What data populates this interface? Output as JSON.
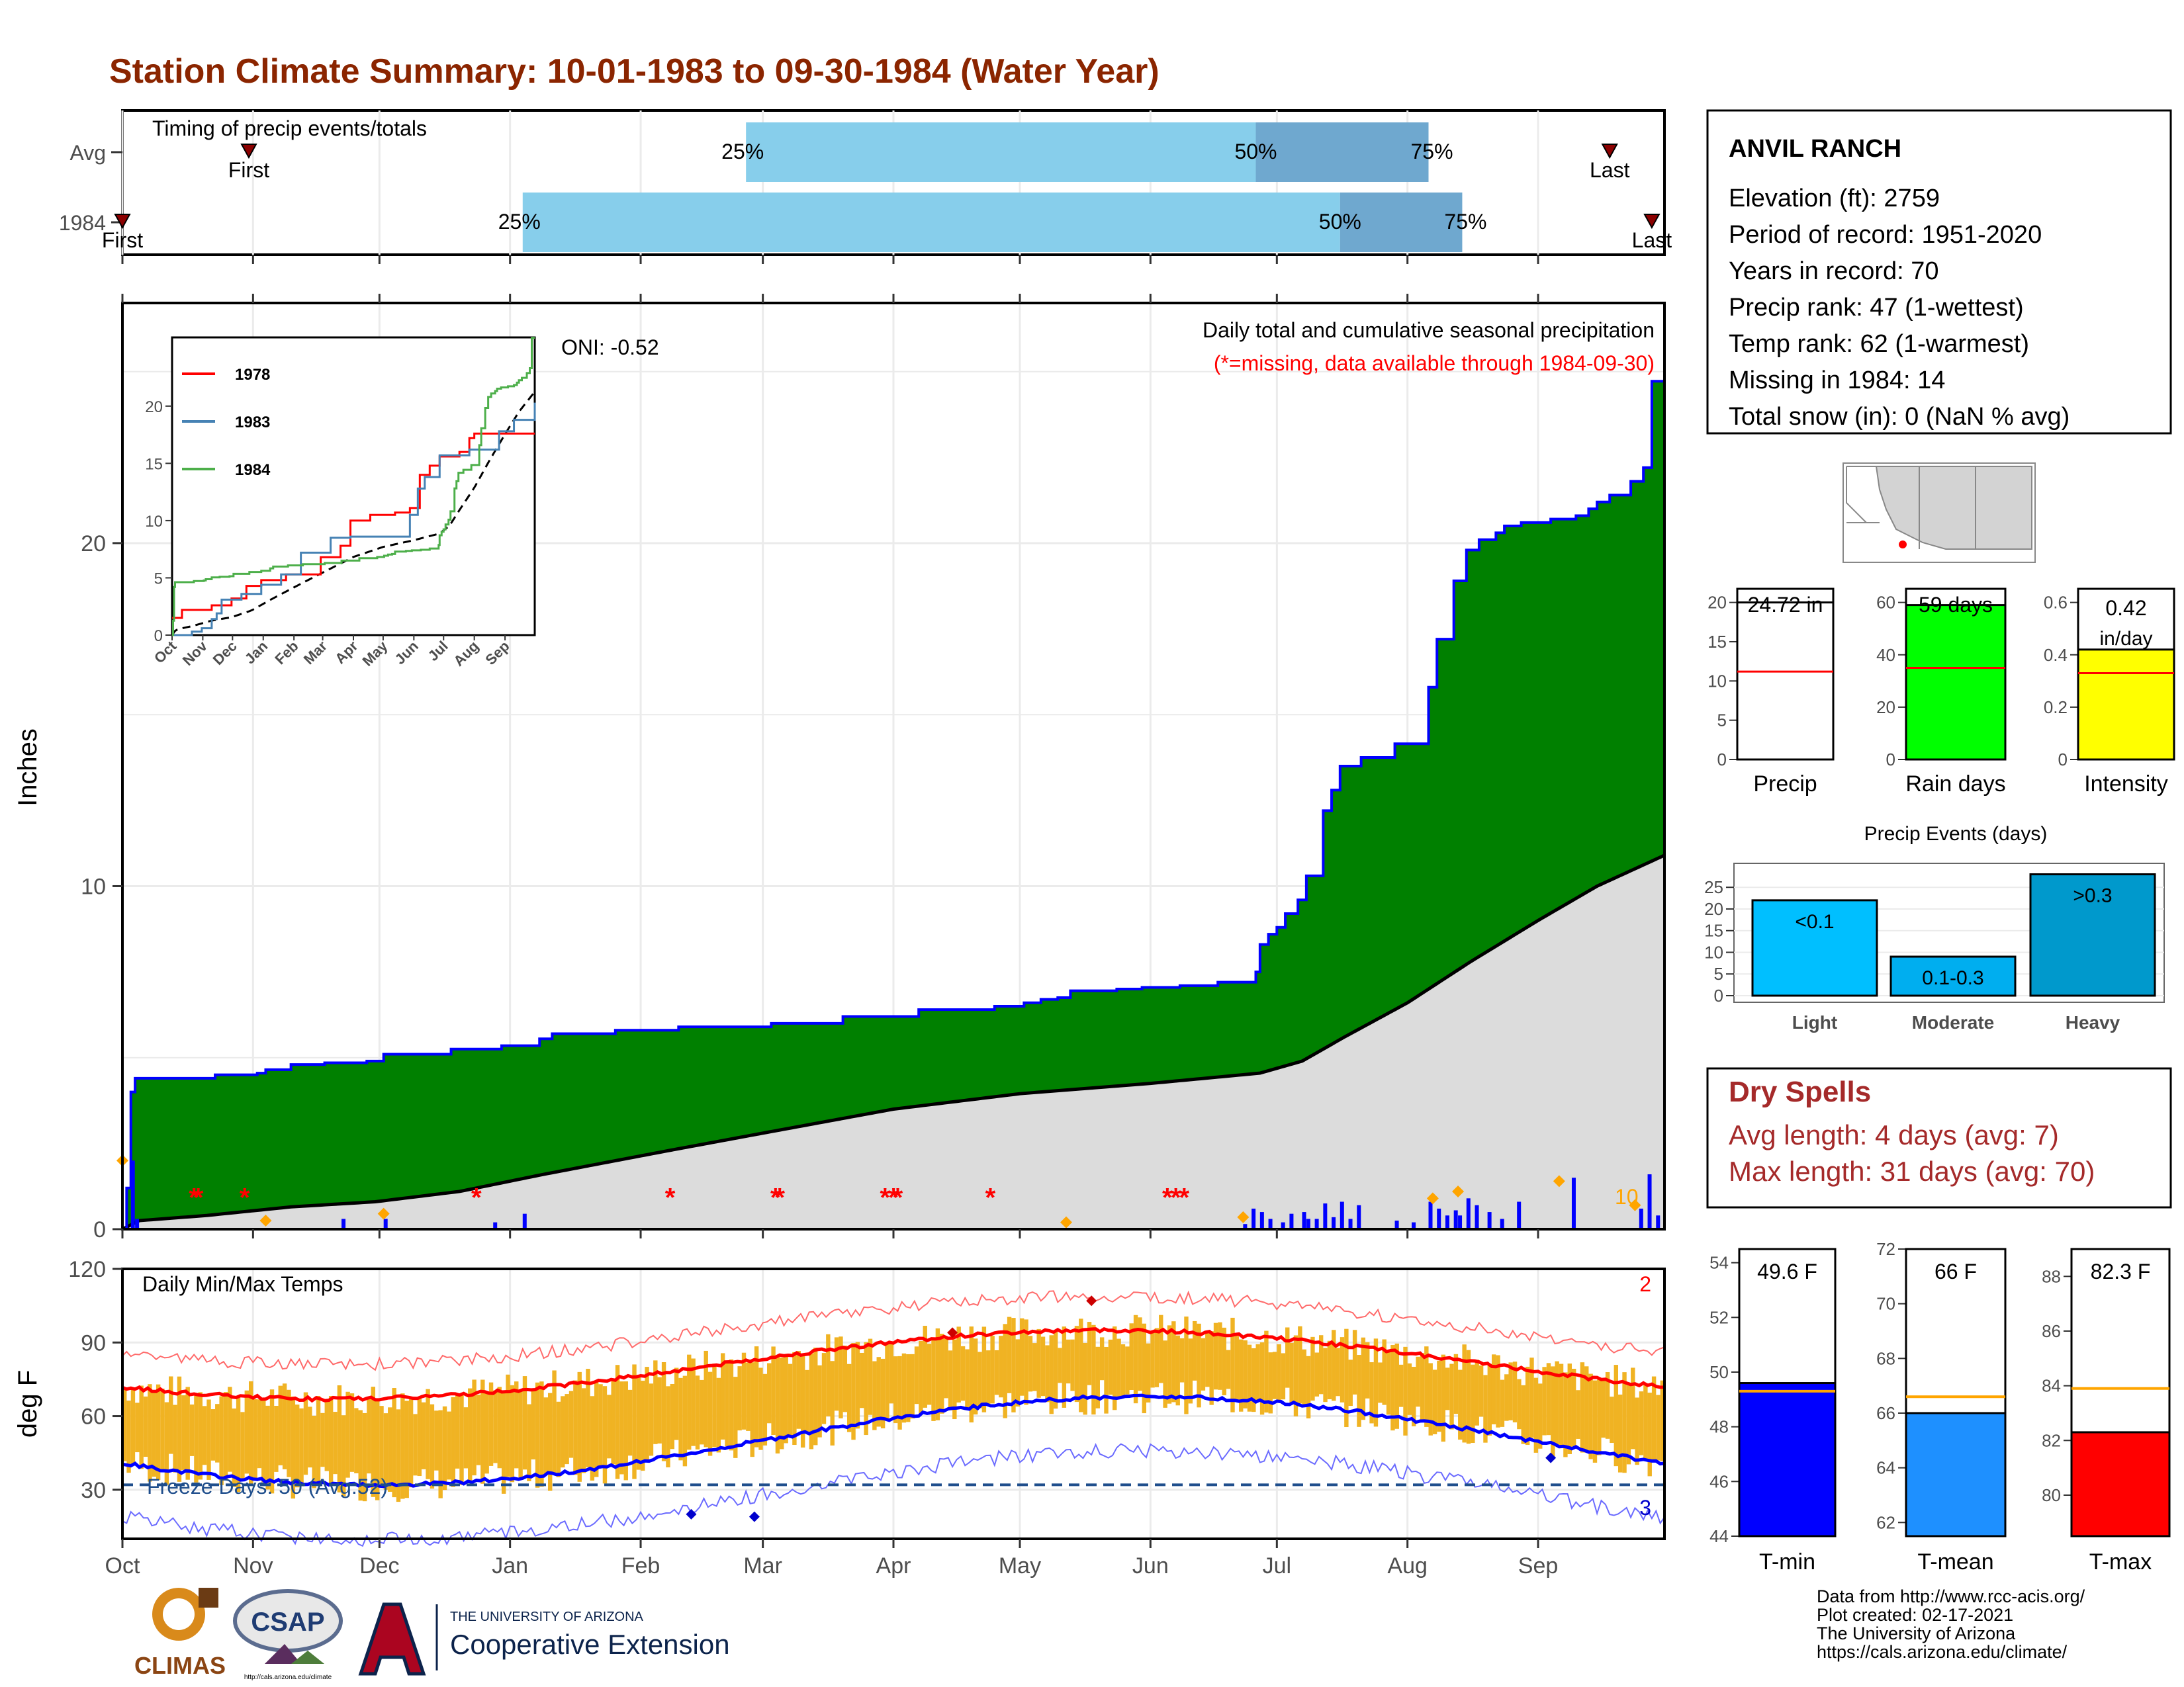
{
  "title": "Station Climate Summary: 10-01-1983 to 09-30-1984 (Water Year)",
  "colors": {
    "title": "#8b2500",
    "bar_light": "#87ceeb",
    "bar_dark": "#6fa8cf",
    "green": "#008000",
    "blue_line": "#0000ff",
    "gray_fill": "#dcdcdc",
    "gold": "#f0b323",
    "red": "#ff0000",
    "dry": "#a52a2a",
    "cyan": "#00bfff",
    "cyan2": "#00aeef",
    "cyan3": "#0099cc",
    "yellow": "#ffff00",
    "lime": "#00ff00",
    "orange": "#ffa500",
    "tmin": "#0000ff",
    "tmean": "#1e90ff"
  },
  "timing": {
    "label": "Timing of precip events/totals",
    "rows": [
      {
        "name": "Avg",
        "first_label": "First",
        "last_label": "Last",
        "first_day": 30,
        "last_day": 353,
        "p25": 148,
        "p50": 269,
        "p75": 310,
        "p25_label": "25%",
        "p50_label": "50%",
        "p75_label": "75%"
      },
      {
        "name": "1984",
        "first_label": "First",
        "last_label": "Last",
        "first_day": 0,
        "last_day": 363,
        "p25": 95,
        "p50": 289,
        "p75": 318,
        "p25_label": "25%",
        "p50_label": "50%",
        "p75_label": "75%"
      }
    ]
  },
  "precip": {
    "ylabel": "Inches",
    "yticks": [
      0,
      10,
      20
    ],
    "ylim": [
      0,
      27
    ],
    "oni": "ONI: -0.52",
    "subtitle": "Daily total and cumulative seasonal precipitation",
    "missing_note": "(*=missing, data available through 1984-09-30)",
    "corner_count": "10",
    "cumulative_1984_breakpoints": [
      [
        0,
        0
      ],
      [
        1,
        1.2
      ],
      [
        2,
        4.0
      ],
      [
        3,
        4.4
      ],
      [
        14,
        4.4
      ],
      [
        22,
        4.5
      ],
      [
        32,
        4.55
      ],
      [
        34,
        4.65
      ],
      [
        40,
        4.8
      ],
      [
        48,
        4.85
      ],
      [
        58,
        4.9
      ],
      [
        62,
        5.1
      ],
      [
        78,
        5.25
      ],
      [
        90,
        5.35
      ],
      [
        99,
        5.55
      ],
      [
        102,
        5.7
      ],
      [
        117,
        5.8
      ],
      [
        132,
        5.9
      ],
      [
        154,
        6.0
      ],
      [
        171,
        6.2
      ],
      [
        189,
        6.4
      ],
      [
        207,
        6.5
      ],
      [
        214,
        6.6
      ],
      [
        218,
        6.7
      ],
      [
        222,
        6.75
      ],
      [
        225,
        6.95
      ],
      [
        236,
        7.0
      ],
      [
        242,
        7.05
      ],
      [
        251,
        7.1
      ],
      [
        260,
        7.2
      ],
      [
        268,
        7.2
      ],
      [
        269,
        7.5
      ],
      [
        270,
        8.3
      ],
      [
        272,
        8.6
      ],
      [
        274,
        8.8
      ],
      [
        276,
        9.2
      ],
      [
        279,
        9.6
      ],
      [
        281,
        10.3
      ],
      [
        285,
        12.2
      ],
      [
        287,
        12.8
      ],
      [
        289,
        13.5
      ],
      [
        294,
        13.75
      ],
      [
        302,
        14.15
      ],
      [
        310,
        15.8
      ],
      [
        312,
        17.2
      ],
      [
        316,
        18.9
      ],
      [
        319,
        19.8
      ],
      [
        322,
        20.1
      ],
      [
        326,
        20.3
      ],
      [
        328,
        20.5
      ],
      [
        332,
        20.6
      ],
      [
        339,
        20.7
      ],
      [
        345,
        20.8
      ],
      [
        348,
        21.0
      ],
      [
        350,
        21.2
      ],
      [
        353,
        21.4
      ],
      [
        358,
        21.8
      ],
      [
        361,
        22.2
      ],
      [
        363,
        24.72
      ],
      [
        366,
        24.72
      ]
    ],
    "cumulative_avg_end": 10.9,
    "daily_bars": [
      [
        2,
        2.0
      ],
      [
        3,
        0.3
      ],
      [
        52,
        0.3
      ],
      [
        62,
        0.3
      ],
      [
        88,
        0.2
      ],
      [
        95,
        0.45
      ],
      [
        266,
        0.15
      ],
      [
        268,
        0.6
      ],
      [
        270,
        0.5
      ],
      [
        272,
        0.3
      ],
      [
        275,
        0.2
      ],
      [
        277,
        0.45
      ],
      [
        280,
        0.5
      ],
      [
        281,
        0.3
      ],
      [
        283,
        0.3
      ],
      [
        285,
        0.75
      ],
      [
        287,
        0.35
      ],
      [
        289,
        0.8
      ],
      [
        291,
        0.3
      ],
      [
        293,
        0.7
      ],
      [
        302,
        0.25
      ],
      [
        306,
        0.2
      ],
      [
        310,
        0.8
      ],
      [
        312,
        0.6
      ],
      [
        314,
        0.4
      ],
      [
        316,
        0.55
      ],
      [
        317,
        0.4
      ],
      [
        319,
        0.9
      ],
      [
        321,
        0.7
      ],
      [
        324,
        0.5
      ],
      [
        327,
        0.3
      ],
      [
        331,
        0.8
      ],
      [
        344,
        1.5
      ],
      [
        360,
        0.6
      ],
      [
        362,
        1.6
      ],
      [
        364,
        0.4
      ]
    ],
    "missing_days": [
      17,
      18,
      29,
      84,
      130,
      155,
      156,
      181,
      183,
      184,
      206,
      248,
      250,
      252
    ],
    "record_markers": [
      [
        0,
        2.0
      ],
      [
        34,
        0.25
      ],
      [
        62,
        0.45
      ],
      [
        311,
        0.9
      ],
      [
        317,
        1.1
      ],
      [
        341,
        1.4
      ],
      [
        359,
        0.7
      ],
      [
        224,
        0.2
      ],
      [
        266,
        0.35
      ]
    ],
    "inset": {
      "series": [
        {
          "name": "1978",
          "color": "#ff0000"
        },
        {
          "name": "1983",
          "color": "#4682b4"
        },
        {
          "name": "1984",
          "color": "#4daf4a"
        }
      ],
      "yticks": [
        0,
        5,
        10,
        15,
        20
      ],
      "months": [
        "Oct",
        "Nov",
        "Dec",
        "Jan",
        "Feb",
        "Mar",
        "Apr",
        "May",
        "Jun",
        "Jul",
        "Aug",
        "Sep"
      ]
    }
  },
  "temps": {
    "ylabel": "deg F",
    "label": "Daily Min/Max Temps",
    "yticks": [
      30,
      60,
      90,
      120
    ],
    "ylim": [
      10,
      120
    ],
    "freeze_label": "Freeze Days: 50 (Avg:52)",
    "freeze_line": 32,
    "max_record_count": "2",
    "min_record_count": "3"
  },
  "months": [
    "Oct",
    "Nov",
    "Dec",
    "Jan",
    "Feb",
    "Mar",
    "Apr",
    "May",
    "Jun",
    "Jul",
    "Aug",
    "Sep"
  ],
  "station": {
    "name": "ANVIL RANCH",
    "lines": [
      "Elevation (ft): 2759",
      "Period of record: 1951-2020",
      "Years in record: 70",
      "Precip rank: 47 (1-wettest)",
      "Temp rank: 62 (1-warmest)",
      "Missing in 1984: 14",
      "Total snow (in): 0 (NaN % avg)"
    ]
  },
  "summary_bars": [
    {
      "name": "Precip",
      "value": 24.72,
      "label": "24.72 in",
      "avg": 11.2,
      "yticks": [
        0,
        5,
        10,
        15,
        20
      ],
      "ymax": 20,
      "color": "#ffffff"
    },
    {
      "name": "Rain days",
      "value": 59,
      "label": "59 days",
      "avg": 35,
      "yticks": [
        0,
        20,
        40,
        60
      ],
      "ymax": 60,
      "color": "#00ff00"
    },
    {
      "name": "Intensity",
      "value": 0.42,
      "label": "0.42 in/day",
      "label_a": "0.42",
      "label_b": "in/day",
      "avg": 0.33,
      "yticks": [
        0.0,
        0.2,
        0.4,
        0.6
      ],
      "ymax": 0.6,
      "color": "#ffff00"
    }
  ],
  "events": {
    "title": "Precip Events (days)",
    "yticks": [
      0,
      5,
      10,
      15,
      20,
      25
    ],
    "categories": [
      "Light",
      "Moderate",
      "Heavy"
    ],
    "labels": [
      "<0.1",
      "0.1-0.3",
      ">0.3"
    ],
    "values": [
      22,
      9,
      28
    ]
  },
  "dry": {
    "title": "Dry Spells",
    "avg": "Avg length: 4 days (avg: 7)",
    "max": "Max length: 31 days (avg: 70)"
  },
  "temp_bars": [
    {
      "name": "T-min",
      "value": 49.6,
      "label": "49.6 F",
      "avg": 49.3,
      "yticks": [
        44,
        46,
        48,
        50,
        52,
        54
      ],
      "ylim": [
        44,
        54.5
      ],
      "color": "#0000ff"
    },
    {
      "name": "T-mean",
      "value": 66,
      "label": "66 F",
      "avg": 66.6,
      "yticks": [
        62,
        64,
        66,
        68,
        70,
        72
      ],
      "ylim": [
        61.5,
        72
      ],
      "color": "#1e90ff"
    },
    {
      "name": "T-max",
      "value": 82.3,
      "label": "82.3 F",
      "avg": 83.9,
      "yticks": [
        80,
        82,
        84,
        86,
        88
      ],
      "ylim": [
        78.5,
        89
      ],
      "color": "#ff0000"
    }
  ],
  "footer": {
    "lines": [
      "Data from http://www.rcc-acis.org/",
      "Plot created: 02-17-2021",
      "The University of Arizona",
      "https://cals.arizona.edu/climate/"
    ],
    "climas": "CLIMAS",
    "csap": "CSAP",
    "csap_url": "http://cals.arizona.edu/climate",
    "ua_small": "THE UNIVERSITY OF ARIZONA",
    "ua_big": "Cooperative Extension"
  }
}
